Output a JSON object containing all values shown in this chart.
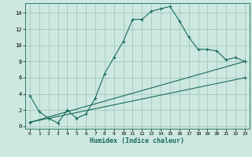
{
  "xlabel": "Humidex (Indice chaleur)",
  "ylabel": "",
  "bg_color": "#cce8e0",
  "grid_color": "#a0c8be",
  "line_color": "#1a6b5a",
  "xlim": [
    -0.5,
    23.5
  ],
  "ylim": [
    -0.3,
    15.2
  ],
  "xticks": [
    0,
    1,
    2,
    3,
    4,
    5,
    6,
    7,
    8,
    9,
    10,
    11,
    12,
    13,
    14,
    15,
    16,
    17,
    18,
    19,
    20,
    21,
    22,
    23
  ],
  "yticks": [
    0,
    2,
    4,
    6,
    8,
    10,
    12,
    14
  ],
  "line1_x": [
    0,
    1,
    2,
    3,
    4,
    5,
    6,
    7,
    8,
    9,
    10,
    11,
    12,
    13,
    14,
    15,
    16,
    17,
    18,
    19,
    20,
    21,
    22,
    23
  ],
  "line1_y": [
    3.8,
    1.8,
    1.0,
    0.4,
    2.0,
    1.0,
    1.5,
    3.5,
    6.5,
    8.5,
    10.5,
    13.2,
    13.2,
    14.2,
    14.5,
    14.8,
    13.0,
    11.0,
    9.5,
    9.5,
    9.3,
    8.2,
    8.5,
    8.0
  ],
  "line2_x": [
    0,
    23
  ],
  "line2_y": [
    0.5,
    6.0
  ],
  "line3_x": [
    0,
    23
  ],
  "line3_y": [
    0.5,
    8.0
  ]
}
